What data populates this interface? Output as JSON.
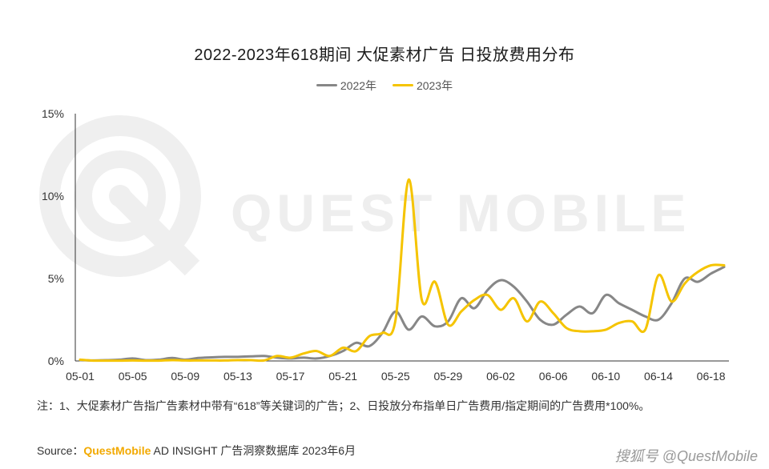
{
  "chart_data": {
    "type": "line",
    "title": "2022-2023年618期间 大促素材广告 日投放费用分布",
    "xlabel": "",
    "ylabel": "",
    "ylim": [
      0,
      15
    ],
    "y_ticks": [
      "0%",
      "5%",
      "10%",
      "15%"
    ],
    "y_tick_values": [
      0,
      5,
      10,
      15
    ],
    "x_tick_labels": [
      "05-01",
      "05-05",
      "05-09",
      "05-13",
      "05-17",
      "05-21",
      "05-25",
      "05-29",
      "06-02",
      "06-06",
      "06-10",
      "06-14",
      "06-18"
    ],
    "legend_position": "top-center",
    "grid": false,
    "series": [
      {
        "name": "2022年",
        "color": "#878787",
        "values": [
          0.05,
          0.03,
          0.05,
          0.08,
          0.15,
          0.05,
          0.08,
          0.18,
          0.08,
          0.18,
          0.22,
          0.25,
          0.25,
          0.28,
          0.3,
          0.2,
          0.15,
          0.2,
          0.15,
          0.3,
          0.6,
          1.1,
          0.9,
          1.7,
          3.0,
          1.9,
          2.7,
          2.1,
          2.4,
          3.8,
          3.2,
          4.3,
          4.9,
          4.5,
          3.6,
          2.5,
          2.2,
          2.8,
          3.3,
          2.9,
          4.0,
          3.5,
          3.1,
          2.7,
          2.5,
          3.5,
          5.0,
          4.8,
          5.3,
          5.7
        ]
      },
      {
        "name": "2023年",
        "color": "#f5c400",
        "values": [
          0.08,
          0.02,
          0.02,
          0.02,
          0.03,
          0.02,
          0.02,
          0.05,
          0.03,
          0.03,
          0.03,
          0.03,
          0.05,
          0.05,
          0.03,
          0.3,
          0.2,
          0.45,
          0.6,
          0.3,
          0.8,
          0.6,
          1.5,
          1.7,
          2.5,
          11.0,
          3.7,
          4.8,
          2.2,
          3.0,
          3.7,
          4.0,
          3.1,
          3.8,
          2.4,
          3.6,
          2.9,
          2.0,
          1.8,
          1.8,
          1.9,
          2.3,
          2.4,
          1.9,
          5.2,
          3.6,
          4.7,
          5.4,
          5.8,
          5.8
        ]
      }
    ]
  },
  "legend_title_note": "",
  "footer": {
    "note": "注：1、大促素材广告指广告素材中带有“618”等关键词的广告；2、日投放分布指单日广告费用/指定期间的广告费用*100%。",
    "source_prefix": "Source：",
    "source_brand": "QuestMobile",
    "source_rest": " AD INSIGHT 广告洞察数据库 2023年6月",
    "right_text": "搜狐号 @QuestMobile"
  },
  "watermark": {
    "text": "QUEST MOBILE"
  },
  "colors": {
    "axis": "#333333",
    "brand": "#f2a900"
  }
}
